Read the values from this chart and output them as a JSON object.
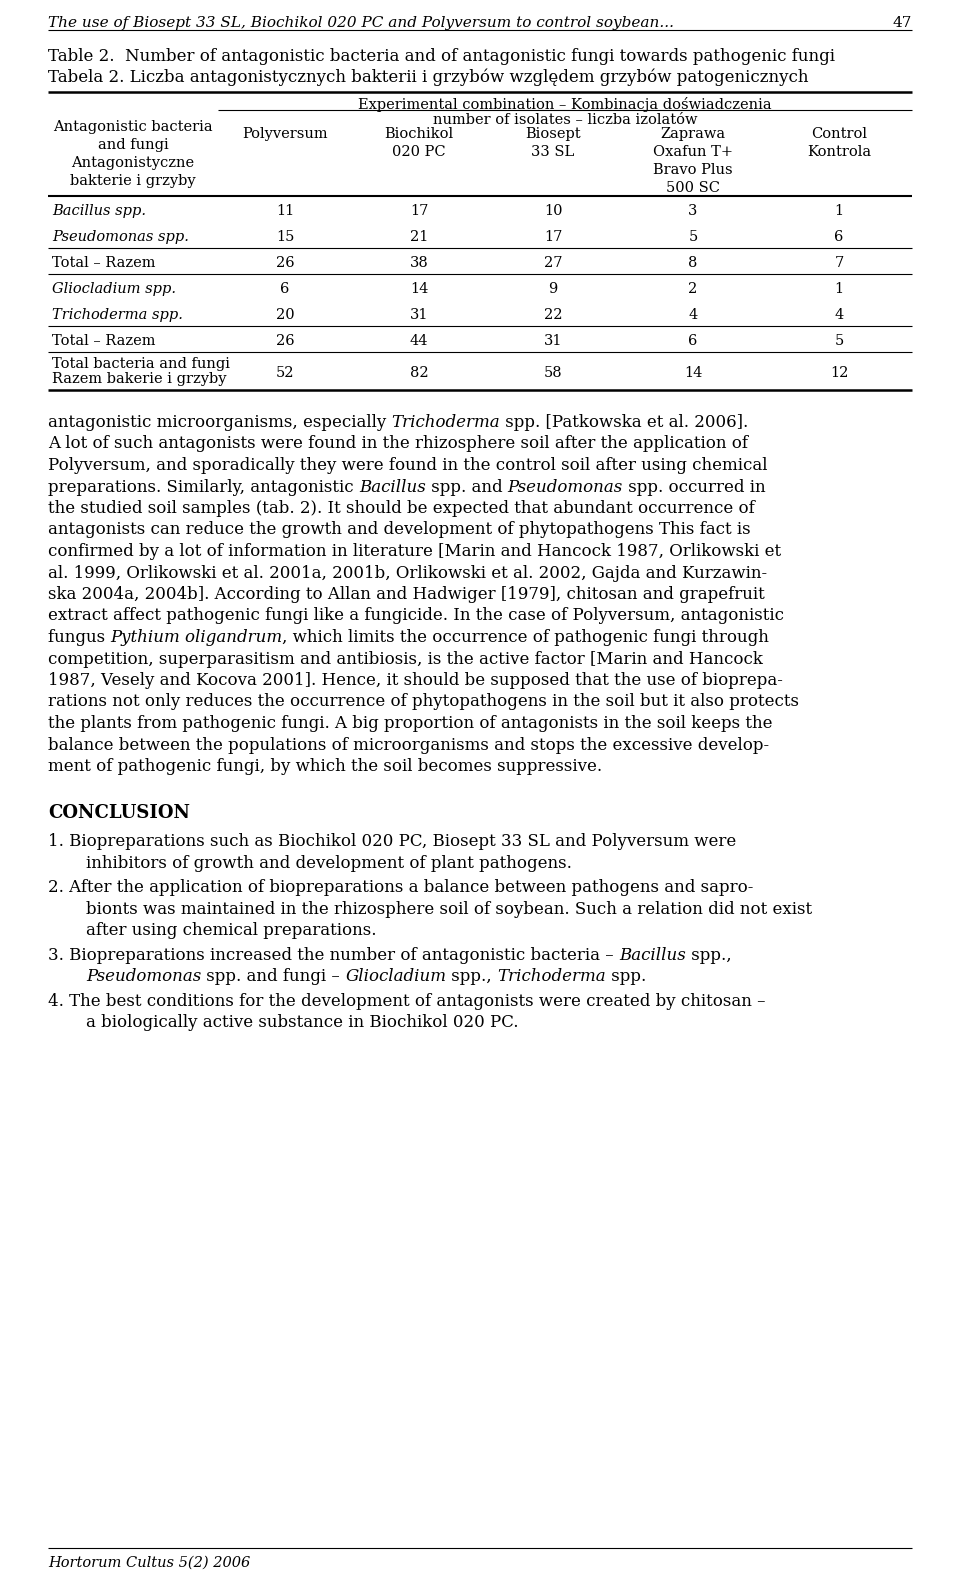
{
  "page_title_line1": "The use of Biosept 33 SL, Biochikol 020 PC and Polyversum to control soybean...",
  "page_number": "47",
  "table_caption_en": "Table 2.  Number of antagonistic bacteria and of antagonistic fungi towards pathogenic fungi",
  "table_caption_pl": "Tabela 2. Liczba antagonistycznych bakterii i grzybów względem grzybów patogenicznych",
  "col_header_main": "Experimental combination – Kombinacja doświadczenia",
  "col_header_sub": "number of isolates – liczba izolatów",
  "col1_header": "Polyversum",
  "col2_header": "Biochikol\n020 PC",
  "col3_header": "Biosept\n33 SL",
  "col4_header": "Zaprawa\nOxafun T+\nBravo Plus\n500 SC",
  "col5_header": "Control\nKontrola",
  "row_header": "Antagonistic bacteria\nand fungi\nAntagonistyczne\nbakterie i grzyby",
  "rows": [
    {
      "label": "Bacillus spp.",
      "italic": true,
      "values": [
        11,
        17,
        10,
        3,
        1
      ],
      "separator_above": true
    },
    {
      "label": "Pseudomonas spp.",
      "italic": true,
      "values": [
        15,
        21,
        17,
        5,
        6
      ],
      "separator_above": false
    },
    {
      "label": "Total – Razem",
      "italic": false,
      "values": [
        26,
        38,
        27,
        8,
        7
      ],
      "separator_above": true
    },
    {
      "label": "Gliocladium spp.",
      "italic": true,
      "values": [
        6,
        14,
        9,
        2,
        1
      ],
      "separator_above": true
    },
    {
      "label": "Trichoderma spp.",
      "italic": true,
      "values": [
        20,
        31,
        22,
        4,
        4
      ],
      "separator_above": false
    },
    {
      "label": "Total – Razem",
      "italic": false,
      "values": [
        26,
        44,
        31,
        6,
        5
      ],
      "separator_above": true
    },
    {
      "label": "Total bacteria and fungi\nRazem bakerie i grzyby",
      "italic": false,
      "values": [
        52,
        82,
        58,
        14,
        12
      ],
      "separator_above": true
    }
  ],
  "para1_lines": [
    [
      [
        "antagonistic microorganisms, especially ",
        false
      ],
      [
        "Trichoderma",
        true
      ],
      [
        " spp. [Patkowska et al. 2006].",
        false
      ]
    ],
    [
      [
        "A lot of such antagonists were found in the rhizosphere soil after the application of",
        false
      ]
    ],
    [
      [
        "Polyversum, and sporadically they were found in the control soil after using chemical",
        false
      ]
    ],
    [
      [
        "preparations. Similarly, antagonistic ",
        false
      ],
      [
        "Bacillus",
        true
      ],
      [
        " spp. and ",
        false
      ],
      [
        "Pseudomonas",
        true
      ],
      [
        " spp. occurred in",
        false
      ]
    ],
    [
      [
        "the studied soil samples (tab. 2). It should be expected that abundant occurrence of",
        false
      ]
    ],
    [
      [
        "antagonists can reduce the growth and development of phytopathogens This fact is",
        false
      ]
    ],
    [
      [
        "confirmed by a lot of information in literature [Marin and Hancock 1987, Orlikowski et",
        false
      ]
    ],
    [
      [
        "al. 1999, Orlikowski et al. 2001a, 2001b, Orlikowski et al. 2002, Gajda and Kurzawin-",
        false
      ]
    ]
  ],
  "para2_lines": [
    [
      [
        "ska 2004a, 2004b]. According to Allan and Hadwiger [1979], chitosan and grapefruit",
        false
      ]
    ],
    [
      [
        "extract affect pathogenic fungi like a fungicide. In the case of Polyversum, antagonistic",
        false
      ]
    ],
    [
      [
        "fungus ",
        false
      ],
      [
        "Pythium oligandrum",
        true
      ],
      [
        ", which limits the occurrence of pathogenic fungi through",
        false
      ]
    ],
    [
      [
        "competition, superparasitism and antibiosis, is the active factor [Marin and Hancock",
        false
      ]
    ],
    [
      [
        "1987, Vesely and Kocova 2001]. Hence, it should be supposed that the use of bioprepa-",
        false
      ]
    ],
    [
      [
        "rations not only reduces the occurrence of phytopathogens in the soil but it also protects",
        false
      ]
    ],
    [
      [
        "the plants from pathogenic fungi. A big proportion of antagonists in the soil keeps the",
        false
      ]
    ],
    [
      [
        "balance between the populations of microorganisms and stops the excessive develop-",
        false
      ]
    ],
    [
      [
        "ment of pathogenic fungi, by which the soil becomes suppressive.",
        false
      ]
    ]
  ],
  "conclusion_title": "CONCLUSION",
  "concl_lines": [
    [
      [
        "1. Biopreparations such as Biochikol 020 PC, Biosept 33 SL and Polyversum were",
        false
      ]
    ],
    [
      [
        "inhibitors of growth and development of plant pathogens.",
        false
      ]
    ],
    [
      [
        "2. After the application of biopreparations a balance between pathogens and sapro-",
        false
      ]
    ],
    [
      [
        "bionts was maintained in the rhizosphere soil of soybean. Such a relation did not exist",
        false
      ]
    ],
    [
      [
        "after using chemical preparations.",
        false
      ]
    ],
    [
      [
        "3. Biopreparations increased the number of antagonistic bacteria – ",
        false
      ],
      [
        "Bacillus",
        true
      ],
      [
        " spp.,",
        false
      ]
    ],
    [
      [
        "Pseudomonas",
        true
      ],
      [
        " spp. and fungi – ",
        false
      ],
      [
        "Gliocladium",
        true
      ],
      [
        " spp., ",
        false
      ],
      [
        "Trichoderma",
        true
      ],
      [
        " spp.",
        false
      ]
    ],
    [
      [
        "4. The best conditions for the development of antagonists were created by chitosan –",
        false
      ]
    ],
    [
      [
        "a biologically active substance in Biochikol 020 PC.",
        false
      ]
    ]
  ],
  "concl_line_indent": [
    0,
    1,
    0,
    1,
    1,
    0,
    1,
    0,
    1
  ],
  "footer": "Hortorum Cultus 5(2) 2006",
  "bg_color": "#ffffff"
}
